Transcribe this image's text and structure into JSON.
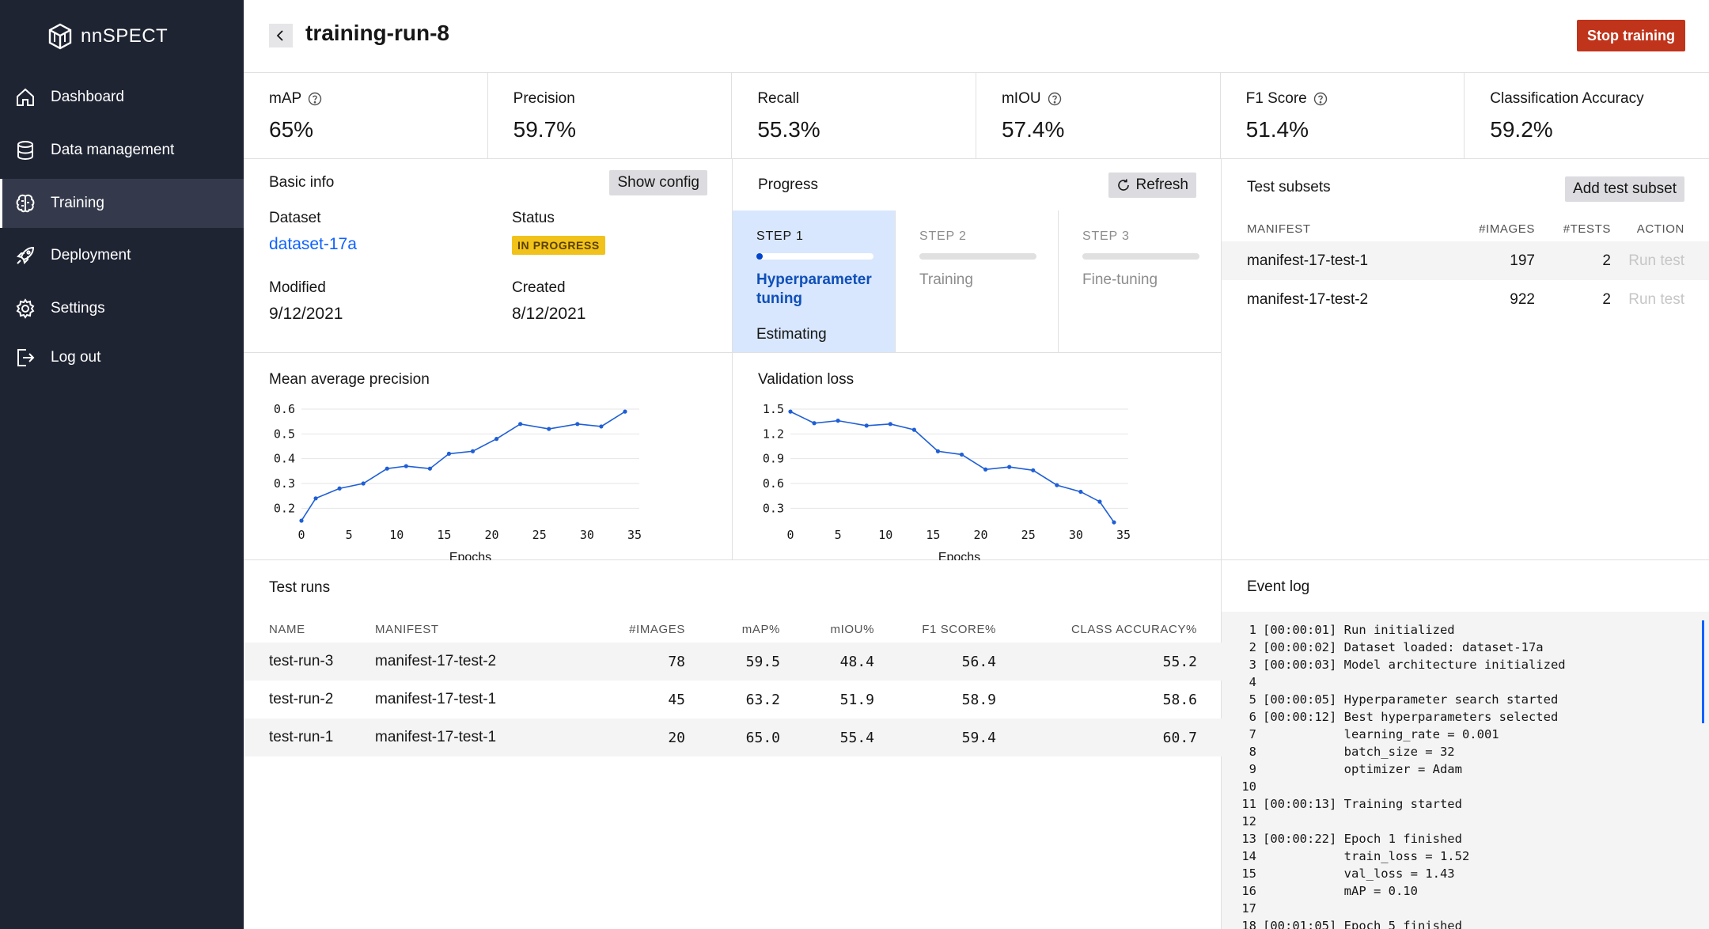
{
  "app": {
    "logo_text": "nnSPECT"
  },
  "sidebar": {
    "items": [
      {
        "label": "Dashboard",
        "icon": "home-icon"
      },
      {
        "label": "Data management",
        "icon": "database-icon"
      },
      {
        "label": "Training",
        "icon": "brain-icon",
        "active": true
      },
      {
        "label": "Deployment",
        "icon": "rocket-icon"
      },
      {
        "label": "Settings",
        "icon": "gear-icon"
      },
      {
        "label": "Log out",
        "icon": "logout-icon"
      }
    ]
  },
  "header": {
    "title": "training-run-8",
    "stop_label": "Stop training"
  },
  "metrics": [
    {
      "label": "mAP",
      "value": "65%",
      "help": true
    },
    {
      "label": "Precision",
      "value": "59.7%",
      "help": false
    },
    {
      "label": "Recall",
      "value": "55.3%",
      "help": false
    },
    {
      "label": "mIOU",
      "value": "57.4%",
      "help": true
    },
    {
      "label": "F1 Score",
      "value": "51.4%",
      "help": true
    },
    {
      "label": "Classification Accuracy",
      "value": "59.2%",
      "help": false
    }
  ],
  "basic_info": {
    "title": "Basic info",
    "config_label": "Show config",
    "dataset_label": "Dataset",
    "dataset_value": "dataset-17a",
    "status_label": "Status",
    "status_value": "IN PROGRESS",
    "modified_label": "Modified",
    "modified_value": "9/12/2021",
    "created_label": "Created",
    "created_value": "8/12/2021"
  },
  "progress": {
    "title": "Progress",
    "refresh_label": "Refresh",
    "steps": [
      {
        "num": "STEP 1",
        "name": "Hyperparameter tuning",
        "sub": "Estimating",
        "progress": 0
      },
      {
        "num": "STEP 2",
        "name": "Training",
        "sub": "",
        "progress": 0
      },
      {
        "num": "STEP 3",
        "name": "Fine-tuning",
        "sub": "",
        "progress": 0
      }
    ]
  },
  "chart_data": [
    {
      "type": "line",
      "title": "Mean average precision",
      "xlabel": "Epochs",
      "ylabel": "",
      "xlim": [
        0,
        35
      ],
      "ylim": [
        0.15,
        0.6
      ],
      "xticks": [
        0,
        5,
        10,
        15,
        20,
        25,
        30,
        35
      ],
      "yticks": [
        0.2,
        0.3,
        0.4,
        0.5,
        0.6
      ],
      "ytick_labels": [
        "0.2",
        "0.3",
        "0.4",
        "0.5",
        "0.6"
      ],
      "grid": true,
      "color": "#1f5fd6",
      "x": [
        0,
        1.5,
        4,
        6.5,
        9,
        11,
        13.5,
        15.5,
        18,
        20.5,
        23,
        26,
        29,
        31.5,
        34
      ],
      "y": [
        0.15,
        0.24,
        0.28,
        0.3,
        0.36,
        0.37,
        0.36,
        0.42,
        0.43,
        0.48,
        0.54,
        0.52,
        0.54,
        0.53,
        0.59
      ]
    },
    {
      "type": "line",
      "title": "Validation loss",
      "xlabel": "Epochs",
      "ylabel": "",
      "xlim": [
        0,
        35
      ],
      "ylim": [
        0.15,
        1.5
      ],
      "xticks": [
        0,
        5,
        10,
        15,
        20,
        25,
        30,
        35
      ],
      "yticks": [
        0.3,
        0.6,
        0.9,
        1.2,
        1.5
      ],
      "ytick_labels": [
        "0.3",
        "0.6",
        "0.9",
        "1.2",
        "1.5"
      ],
      "grid": true,
      "color": "#1f5fd6",
      "x": [
        0,
        2.5,
        5,
        8,
        10.5,
        13,
        15.5,
        18,
        20.5,
        23,
        25.5,
        28,
        30.5,
        32.5,
        34
      ],
      "y": [
        1.47,
        1.33,
        1.36,
        1.3,
        1.32,
        1.25,
        0.99,
        0.95,
        0.77,
        0.8,
        0.76,
        0.58,
        0.5,
        0.38,
        0.13
      ]
    }
  ],
  "subsets": {
    "title": "Test subsets",
    "add_label": "Add test subset",
    "columns": [
      "MANIFEST",
      "#IMAGES",
      "#TESTS",
      "ACTION"
    ],
    "rows": [
      {
        "manifest": "manifest-17-test-1",
        "images": "197",
        "tests": "2",
        "action": "Run test"
      },
      {
        "manifest": "manifest-17-test-2",
        "images": "922",
        "tests": "2",
        "action": "Run test"
      }
    ]
  },
  "test_runs": {
    "title": "Test runs",
    "columns": [
      "NAME",
      "MANIFEST",
      "#IMAGES",
      "mAP%",
      "mIOU%",
      "F1 SCORE%",
      "CLASS ACCURACY%"
    ],
    "rows": [
      {
        "name": "test-run-3",
        "manifest": "manifest-17-test-2",
        "images": "78",
        "map": "59.5",
        "miou": "48.4",
        "f1": "56.4",
        "acc": "55.2"
      },
      {
        "name": "test-run-2",
        "manifest": "manifest-17-test-1",
        "images": "45",
        "map": "63.2",
        "miou": "51.9",
        "f1": "58.9",
        "acc": "58.6"
      },
      {
        "name": "test-run-1",
        "manifest": "manifest-17-test-1",
        "images": "20",
        "map": "65.0",
        "miou": "55.4",
        "f1": "59.4",
        "acc": "60.7"
      }
    ]
  },
  "event_log": {
    "title": "Event log",
    "lines": [
      "[00:00:01] Run initialized",
      "[00:00:02] Dataset loaded: dataset-17a",
      "[00:00:03] Model architecture initialized",
      "",
      "[00:00:05] Hyperparameter search started",
      "[00:00:12] Best hyperparameters selected",
      "           learning_rate = 0.001",
      "           batch_size = 32",
      "           optimizer = Adam",
      "",
      "[00:00:13] Training started",
      "",
      "[00:00:22] Epoch 1 finished",
      "           train_loss = 1.52",
      "           val_loss = 1.43",
      "           mAP = 0.10",
      "",
      "[00:01:05] Epoch 5 finished"
    ]
  }
}
